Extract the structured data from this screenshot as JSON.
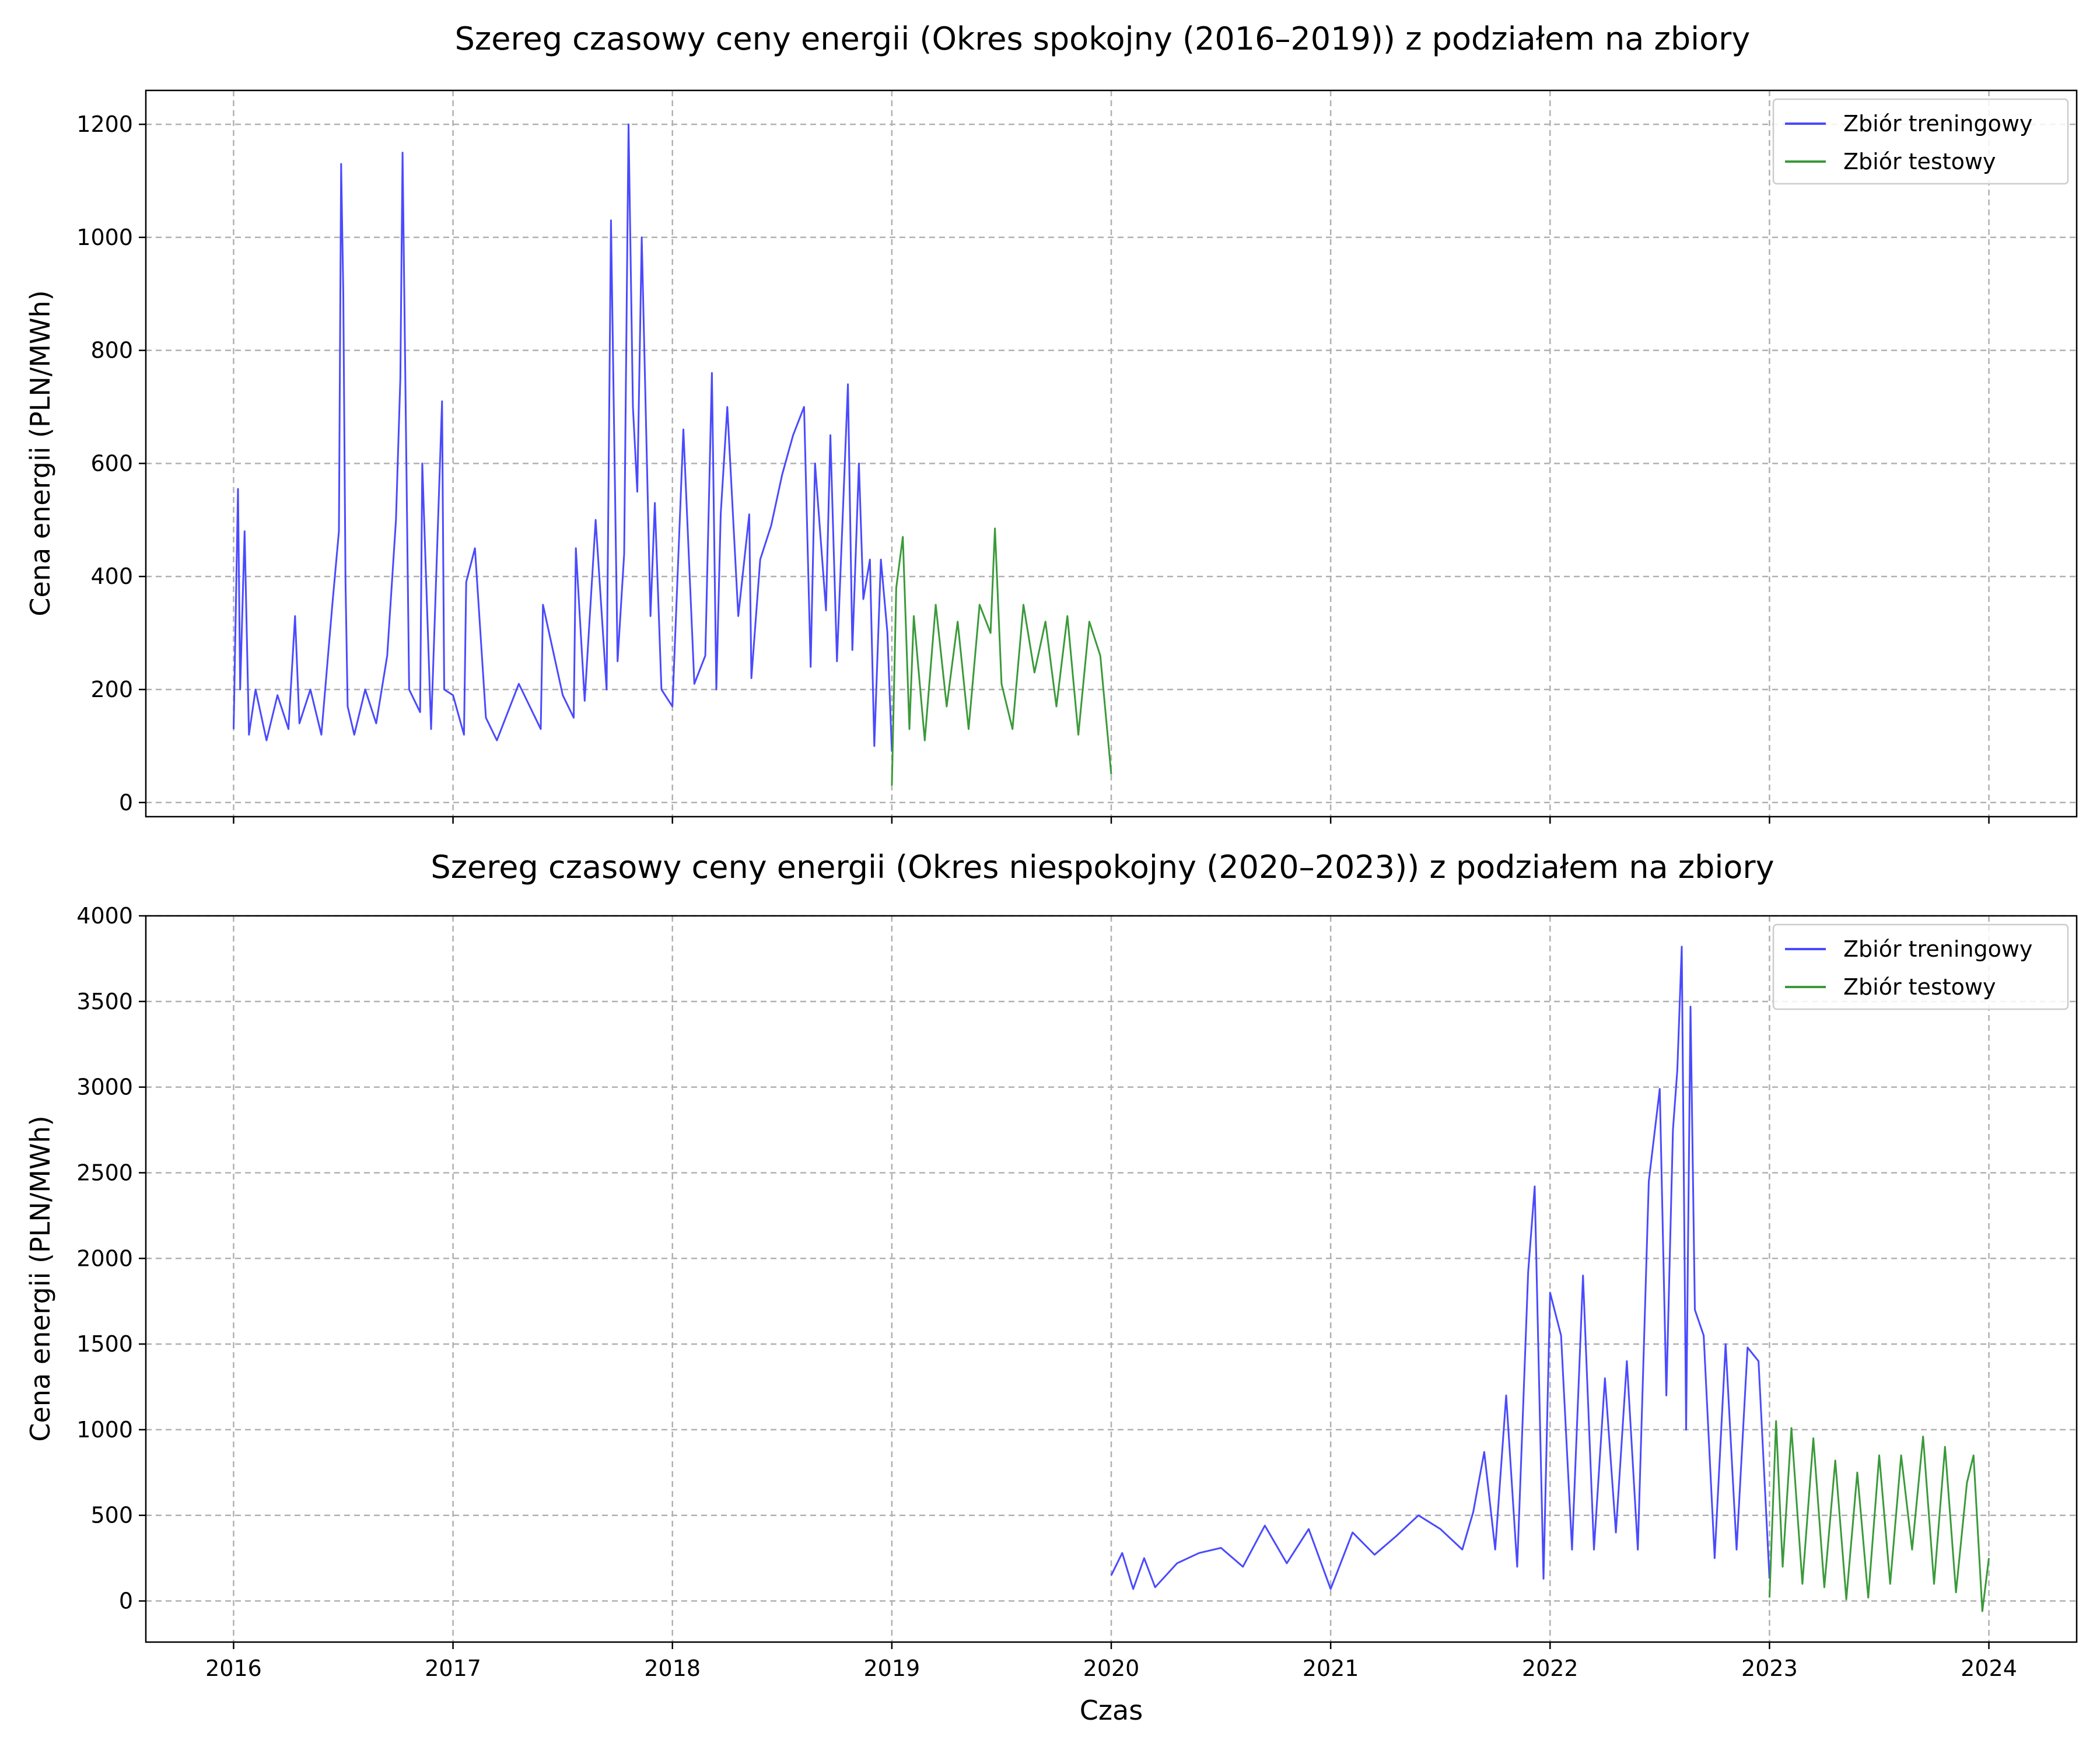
{
  "chart_data": [
    {
      "type": "line",
      "title": "Szereg czasowy ceny energii (Okres spokojny (2016–2019)) z podziałem na zbiory",
      "xlabel": "",
      "ylabel": "Cena energii (PLN/MWh)",
      "xlim": [
        2015.6,
        2024.4
      ],
      "ylim": [
        -25,
        1260
      ],
      "yticks": [
        0,
        200,
        400,
        600,
        800,
        1000,
        1200
      ],
      "xticks": [
        2016,
        2017,
        2018,
        2019,
        2020,
        2021,
        2022,
        2023,
        2024
      ],
      "xtick_labels_visible": false,
      "grid": true,
      "legend_position": "top-right",
      "series": [
        {
          "name": "Zbiór treningowy",
          "color": "#4a4aff",
          "x": [
            2016.0,
            2016.02,
            2016.03,
            2016.05,
            2016.07,
            2016.1,
            2016.15,
            2016.2,
            2016.25,
            2016.28,
            2016.3,
            2016.35,
            2016.4,
            2016.45,
            2016.48,
            2016.49,
            2016.5,
            2016.51,
            2016.52,
            2016.55,
            2016.6,
            2016.65,
            2016.7,
            2016.74,
            2016.76,
            2016.77,
            2016.8,
            2016.85,
            2016.86,
            2016.9,
            2016.95,
            2016.96,
            2017.0,
            2017.05,
            2017.06,
            2017.1,
            2017.15,
            2017.2,
            2017.3,
            2017.4,
            2017.41,
            2017.5,
            2017.55,
            2017.56,
            2017.6,
            2017.65,
            2017.7,
            2017.72,
            2017.75,
            2017.78,
            2017.8,
            2017.82,
            2017.84,
            2017.86,
            2017.9,
            2017.92,
            2017.95,
            2018.0,
            2018.05,
            2018.1,
            2018.15,
            2018.18,
            2018.2,
            2018.22,
            2018.25,
            2018.3,
            2018.35,
            2018.36,
            2018.4,
            2018.45,
            2018.5,
            2018.55,
            2018.6,
            2018.63,
            2018.65,
            2018.7,
            2018.72,
            2018.75,
            2018.8,
            2018.82,
            2018.85,
            2018.87,
            2018.9,
            2018.92,
            2018.95,
            2018.98,
            2019.0
          ],
          "y": [
            130,
            555,
            200,
            480,
            120,
            200,
            110,
            190,
            130,
            330,
            140,
            200,
            120,
            350,
            480,
            1130,
            900,
            390,
            170,
            120,
            200,
            140,
            260,
            500,
            750,
            1150,
            200,
            160,
            600,
            130,
            710,
            200,
            190,
            120,
            390,
            450,
            150,
            110,
            210,
            130,
            350,
            190,
            150,
            450,
            180,
            500,
            200,
            1030,
            250,
            440,
            1200,
            700,
            550,
            1000,
            330,
            530,
            200,
            170,
            660,
            210,
            260,
            760,
            200,
            510,
            700,
            330,
            510,
            220,
            430,
            490,
            580,
            650,
            700,
            240,
            600,
            340,
            650,
            250,
            740,
            270,
            600,
            360,
            430,
            100,
            430,
            300,
            90
          ]
        },
        {
          "name": "Zbiór testowy",
          "color": "#3a9a3a",
          "x": [
            2019.0,
            2019.02,
            2019.05,
            2019.08,
            2019.1,
            2019.15,
            2019.2,
            2019.25,
            2019.3,
            2019.35,
            2019.4,
            2019.45,
            2019.47,
            2019.5,
            2019.55,
            2019.6,
            2019.65,
            2019.7,
            2019.75,
            2019.8,
            2019.85,
            2019.9,
            2019.95,
            2020.0
          ],
          "y": [
            30,
            380,
            470,
            130,
            330,
            110,
            350,
            170,
            320,
            130,
            350,
            300,
            485,
            210,
            130,
            350,
            230,
            320,
            170,
            330,
            120,
            320,
            260,
            50
          ]
        }
      ]
    },
    {
      "type": "line",
      "title": "Szereg czasowy ceny energii (Okres niespokojny (2020–2023)) z podziałem na zbiory",
      "xlabel": "Czas",
      "ylabel": "Cena energii (PLN/MWh)",
      "xlim": [
        2015.6,
        2024.4
      ],
      "ylim": [
        -240,
        4000
      ],
      "yticks": [
        0,
        500,
        1000,
        1500,
        2000,
        2500,
        3000,
        3500,
        4000
      ],
      "xticks": [
        2016,
        2017,
        2018,
        2019,
        2020,
        2021,
        2022,
        2023,
        2024
      ],
      "xtick_labels_visible": true,
      "grid": true,
      "legend_position": "top-right",
      "series": [
        {
          "name": "Zbiór treningowy",
          "color": "#4a4aff",
          "x": [
            2020.0,
            2020.05,
            2020.1,
            2020.15,
            2020.2,
            2020.3,
            2020.4,
            2020.5,
            2020.6,
            2020.7,
            2020.8,
            2020.9,
            2021.0,
            2021.1,
            2021.2,
            2021.3,
            2021.4,
            2021.5,
            2021.6,
            2021.65,
            2021.7,
            2021.75,
            2021.8,
            2021.85,
            2021.9,
            2021.93,
            2021.97,
            2022.0,
            2022.05,
            2022.1,
            2022.15,
            2022.2,
            2022.25,
            2022.3,
            2022.35,
            2022.4,
            2022.45,
            2022.5,
            2022.53,
            2022.56,
            2022.58,
            2022.6,
            2022.62,
            2022.64,
            2022.66,
            2022.7,
            2022.75,
            2022.8,
            2022.85,
            2022.9,
            2022.95,
            2023.0
          ],
          "y": [
            150,
            280,
            70,
            250,
            80,
            220,
            280,
            310,
            200,
            440,
            220,
            420,
            70,
            400,
            270,
            380,
            500,
            420,
            300,
            520,
            870,
            300,
            1200,
            200,
            1920,
            2420,
            130,
            1800,
            1550,
            300,
            1900,
            300,
            1300,
            400,
            1400,
            300,
            2450,
            2990,
            1200,
            2750,
            3100,
            3820,
            1000,
            3470,
            1700,
            1550,
            250,
            1500,
            300,
            1480,
            1400,
            130
          ]
        },
        {
          "name": "Zbiór testowy",
          "color": "#3a9a3a",
          "x": [
            2023.0,
            2023.03,
            2023.06,
            2023.1,
            2023.15,
            2023.2,
            2023.25,
            2023.3,
            2023.35,
            2023.4,
            2023.45,
            2023.5,
            2023.55,
            2023.6,
            2023.65,
            2023.7,
            2023.75,
            2023.8,
            2023.85,
            2023.9,
            2023.93,
            2023.97,
            2024.0
          ],
          "y": [
            20,
            1050,
            200,
            1010,
            100,
            950,
            80,
            820,
            10,
            750,
            20,
            850,
            100,
            850,
            300,
            960,
            100,
            900,
            50,
            690,
            850,
            -60,
            250
          ]
        }
      ]
    }
  ]
}
